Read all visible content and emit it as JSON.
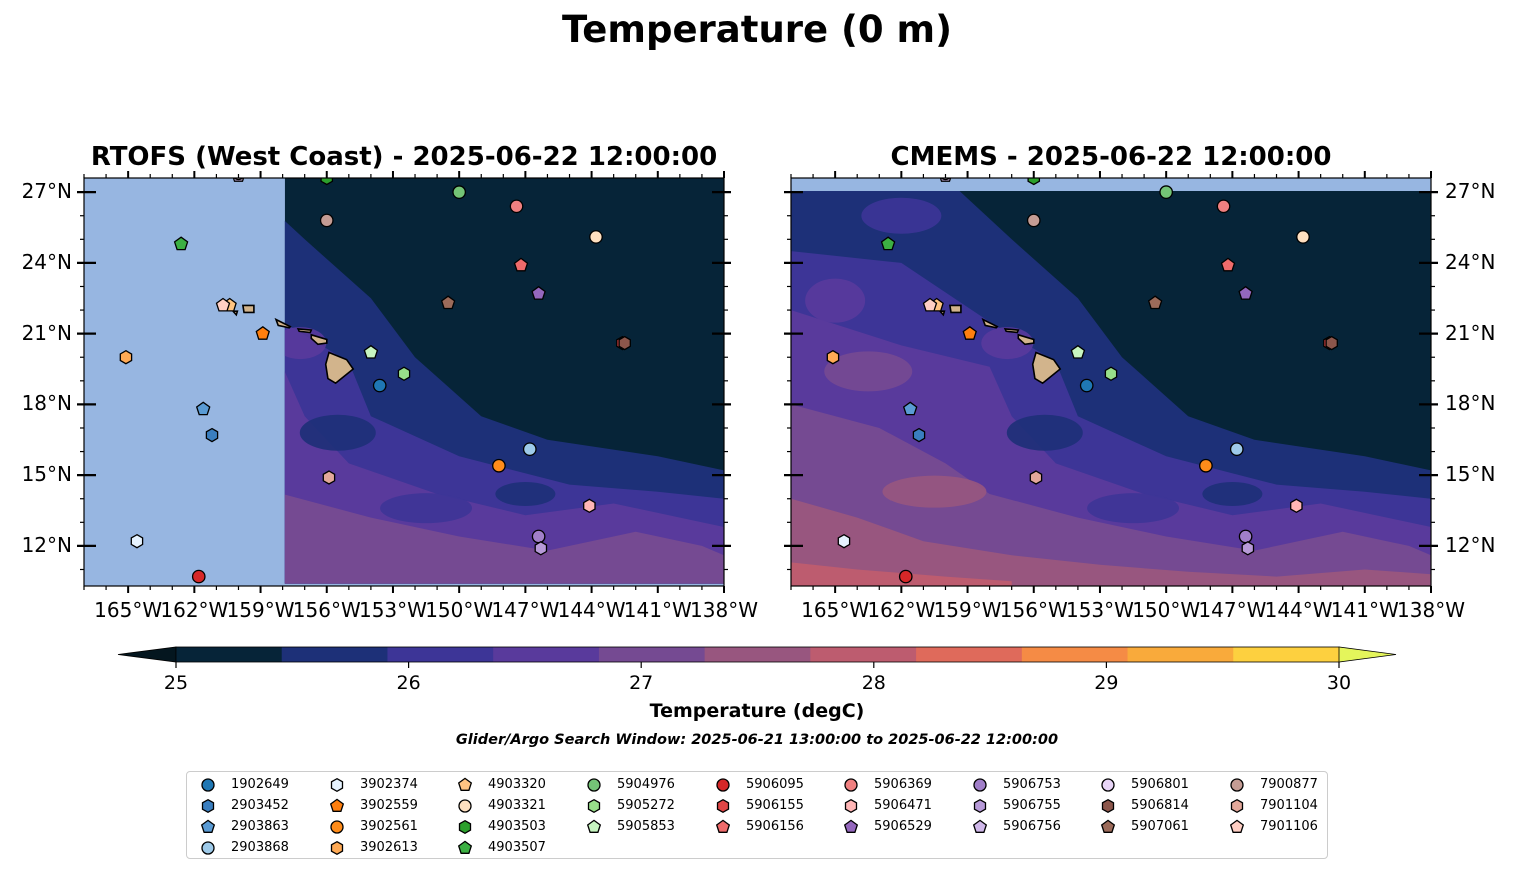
{
  "title": "Temperature (0 m)",
  "panels": [
    {
      "title": "RTOFS (West Coast) - 2025-06-22 12:00:00",
      "tick_side": "left",
      "coverage": "partial"
    },
    {
      "title": "CMEMS - 2025-06-22 12:00:00",
      "tick_side": "right",
      "coverage": "full"
    }
  ],
  "map_extent": {
    "lon": [
      -167,
      -138
    ],
    "lat": [
      10.3,
      27.6
    ]
  },
  "lon_ticks": [
    {
      "value": -165,
      "label": "165°W"
    },
    {
      "value": -162,
      "label": "162°W"
    },
    {
      "value": -159,
      "label": "159°W"
    },
    {
      "value": -156,
      "label": "156°W"
    },
    {
      "value": -153,
      "label": "153°W"
    },
    {
      "value": -150,
      "label": "150°W"
    },
    {
      "value": -147,
      "label": "147°W"
    },
    {
      "value": -144,
      "label": "144°W"
    },
    {
      "value": -141,
      "label": "141°W"
    },
    {
      "value": -138,
      "label": "138°W"
    }
  ],
  "lat_ticks": [
    {
      "value": 12,
      "label": "12°N"
    },
    {
      "value": 15,
      "label": "15°N"
    },
    {
      "value": 18,
      "label": "18°N"
    },
    {
      "value": 21,
      "label": "21°N"
    },
    {
      "value": 24,
      "label": "24°N"
    },
    {
      "value": 27,
      "label": "27°N"
    }
  ],
  "colorbar": {
    "label": "Temperature (degC)",
    "range": [
      25,
      30
    ],
    "step": 0.5,
    "colors": [
      "#062438",
      "#1d3078",
      "#3d3597",
      "#593a9c",
      "#754a92",
      "#98567f",
      "#bd5c6f",
      "#df6a5b",
      "#f58b45",
      "#f9aa3b",
      "#fdd03f"
    ],
    "under_color": "#04161f",
    "over_color": "#e4f55b",
    "ticks": [
      {
        "value": 25,
        "label": "25"
      },
      {
        "value": 26,
        "label": "26"
      },
      {
        "value": 27,
        "label": "27"
      },
      {
        "value": 28,
        "label": "28"
      },
      {
        "value": 29,
        "label": "29"
      },
      {
        "value": 30,
        "label": "30"
      }
    ]
  },
  "search_window": "Glider/Argo Search Window: 2025-06-21 13:00:00 to 2025-06-22 12:00:00",
  "map_colors": {
    "land": "#d2b48c",
    "no_data": "#97b6e1",
    "coastline": "#000000"
  },
  "floats": [
    {
      "id": "1902649",
      "marker": "circle",
      "color": "#1f77b4",
      "lon": -153.6,
      "lat": 18.8
    },
    {
      "id": "2903452",
      "marker": "hexagon",
      "color": "#3a7ebf",
      "lon": -161.2,
      "lat": 16.7
    },
    {
      "id": "2903863",
      "marker": "pentagon",
      "color": "#5a9bd4",
      "lon": -161.6,
      "lat": 17.8
    },
    {
      "id": "2903868",
      "marker": "circle",
      "color": "#9ecae9",
      "lon": -146.8,
      "lat": 16.1
    },
    {
      "id": "3902374",
      "marker": "hexagon",
      "color": "#e6f3ff",
      "lon": -164.6,
      "lat": 12.2
    },
    {
      "id": "3902559",
      "marker": "pentagon",
      "color": "#ff7f0e",
      "lon": -158.9,
      "lat": 21.0
    },
    {
      "id": "3902561",
      "marker": "circle",
      "color": "#ff8c1a",
      "lon": -148.2,
      "lat": 15.4
    },
    {
      "id": "3902613",
      "marker": "hexagon",
      "color": "#ffaa55",
      "lon": -165.1,
      "lat": 20.0
    },
    {
      "id": "4903320",
      "marker": "pentagon",
      "color": "#ffc482",
      "lon": -160.4,
      "lat": 22.2
    },
    {
      "id": "4903321",
      "marker": "circle",
      "color": "#ffe0c0",
      "lon": -143.8,
      "lat": 25.1
    },
    {
      "id": "4903503",
      "marker": "hexagon",
      "color": "#2ca02c",
      "lon": -156.0,
      "lat": 27.6
    },
    {
      "id": "4903507",
      "marker": "pentagon",
      "color": "#3cb043",
      "lon": -162.6,
      "lat": 24.8
    },
    {
      "id": "5904976",
      "marker": "circle",
      "color": "#74c476",
      "lon": -150.0,
      "lat": 27.0
    },
    {
      "id": "5905272",
      "marker": "hexagon",
      "color": "#98df8a",
      "lon": -152.5,
      "lat": 19.3
    },
    {
      "id": "5905853",
      "marker": "pentagon",
      "color": "#c7f5c0",
      "lon": -154.0,
      "lat": 20.2
    },
    {
      "id": "5906095",
      "marker": "circle",
      "color": "#d62728",
      "lon": -161.8,
      "lat": 10.7
    },
    {
      "id": "5906155",
      "marker": "hexagon",
      "color": "#e04545",
      "lon": -142.6,
      "lat": 20.6
    },
    {
      "id": "5906156",
      "marker": "pentagon",
      "color": "#ef6b6b",
      "lon": -147.2,
      "lat": 23.9
    },
    {
      "id": "5906369",
      "marker": "circle",
      "color": "#f08080",
      "lon": -147.4,
      "lat": 26.4
    },
    {
      "id": "5906471",
      "marker": "hexagon",
      "color": "#ffb6b6",
      "lon": -144.1,
      "lat": 13.7
    },
    {
      "id": "5906529",
      "marker": "pentagon",
      "color": "#9467bd",
      "lon": -146.4,
      "lat": 22.7
    },
    {
      "id": "5906753",
      "marker": "circle",
      "color": "#a17fc9",
      "lon": -146.4,
      "lat": 12.4
    },
    {
      "id": "5906755",
      "marker": "hexagon",
      "color": "#b79ad8",
      "lon": -146.3,
      "lat": 11.9
    },
    {
      "id": "5906756",
      "marker": "pentagon",
      "color": "#d0b8ea",
      "lon": -160.0,
      "lat": 27.7
    },
    {
      "id": "5906801",
      "marker": "circle",
      "color": "#e8d5f7",
      "lon": -160.0,
      "lat": 27.8
    },
    {
      "id": "5906814",
      "marker": "hexagon",
      "color": "#8c564b",
      "lon": -142.5,
      "lat": 20.6
    },
    {
      "id": "5907061",
      "marker": "pentagon",
      "color": "#9c6b5a",
      "lon": -150.5,
      "lat": 22.3
    },
    {
      "id": "7900877",
      "marker": "circle",
      "color": "#c49c94",
      "lon": -156.0,
      "lat": 25.8
    },
    {
      "id": "7901104",
      "marker": "hexagon",
      "color": "#e3a89a",
      "lon": -155.9,
      "lat": 14.9
    },
    {
      "id": "7901106",
      "marker": "pentagon",
      "color": "#ffcfc4",
      "lon": -160.7,
      "lat": 22.2
    }
  ]
}
